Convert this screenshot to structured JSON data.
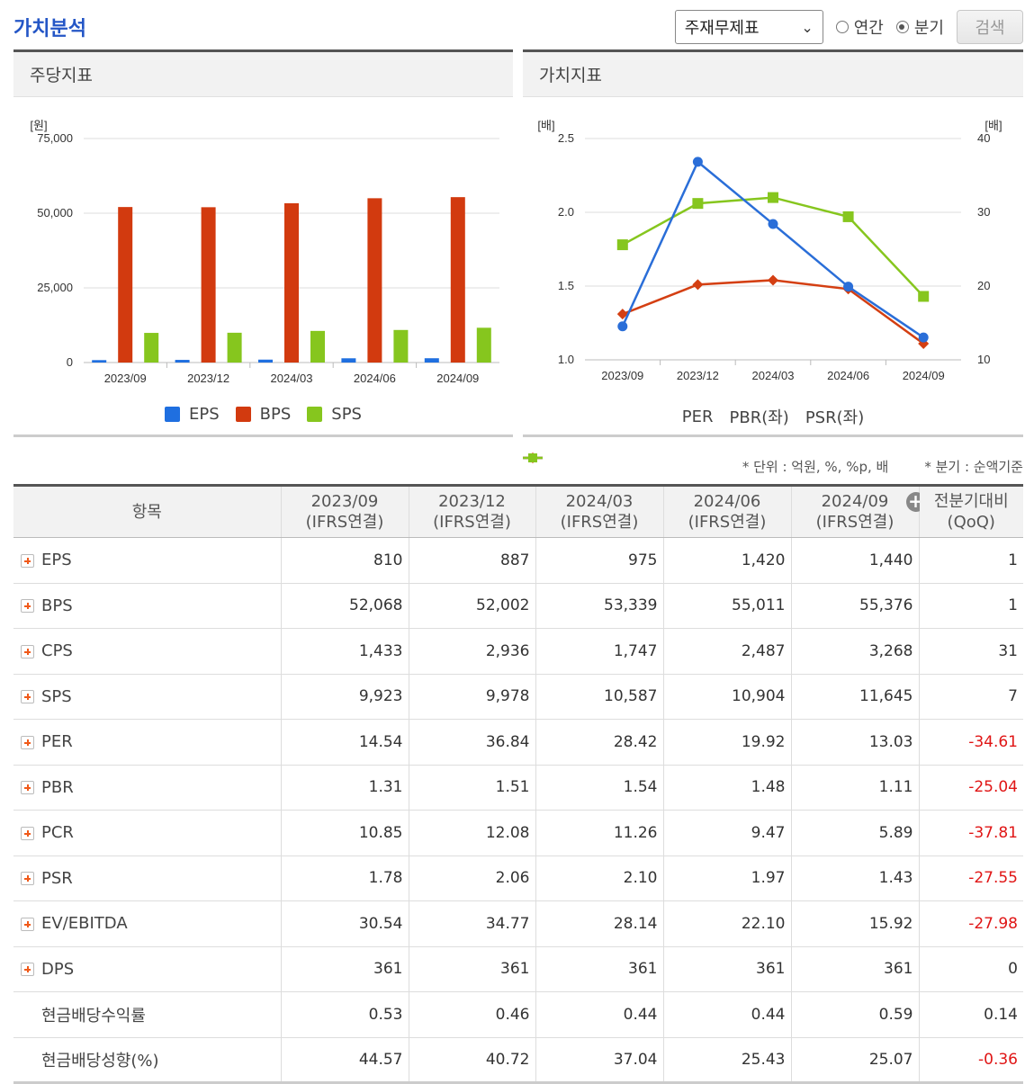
{
  "title": "가치분석",
  "controls": {
    "select_value": "주재무제표",
    "radio_annual": "연간",
    "radio_quarter": "분기",
    "search_label": "검색"
  },
  "panels": {
    "left_title": "주당지표",
    "right_title": "가치지표"
  },
  "chart_data": [
    {
      "type": "bar",
      "ylabel": "[원]",
      "ylim": [
        0,
        75000
      ],
      "yticks": [
        "0",
        "25,000",
        "50,000",
        "75,000"
      ],
      "categories": [
        "2023/09",
        "2023/12",
        "2024/03",
        "2024/06",
        "2024/09"
      ],
      "series": [
        {
          "name": "EPS",
          "color": "#1f6fe0",
          "values": [
            810,
            887,
            975,
            1420,
            1440
          ]
        },
        {
          "name": "BPS",
          "color": "#d23a0f",
          "values": [
            52068,
            52002,
            53339,
            55011,
            55376
          ]
        },
        {
          "name": "SPS",
          "color": "#86c61e",
          "values": [
            9923,
            9978,
            10587,
            10904,
            11645
          ]
        }
      ],
      "grid": true,
      "legend": "bottom"
    },
    {
      "type": "line",
      "ylabel_left": "[배]",
      "ylabel_right": "[배]",
      "ylim_left": [
        1.0,
        2.5
      ],
      "ylim_right": [
        10,
        40
      ],
      "yticks_left": [
        "1.0",
        "1.5",
        "2.0",
        "2.5"
      ],
      "yticks_right": [
        "10",
        "20",
        "30",
        "40"
      ],
      "categories": [
        "2023/09",
        "2023/12",
        "2024/03",
        "2024/06",
        "2024/09"
      ],
      "series": [
        {
          "name": "PER",
          "axis": "right",
          "color": "#2a6ed8",
          "marker": "circle",
          "values": [
            14.54,
            36.84,
            28.42,
            19.92,
            13.03
          ]
        },
        {
          "name": "PBR(좌)",
          "axis": "left",
          "color": "#d43f12",
          "marker": "diamond",
          "values": [
            1.31,
            1.51,
            1.54,
            1.48,
            1.11
          ]
        },
        {
          "name": "PSR(좌)",
          "axis": "left",
          "color": "#86c61e",
          "marker": "square",
          "values": [
            1.78,
            2.06,
            2.1,
            1.97,
            1.43
          ]
        }
      ],
      "grid": true,
      "legend": "bottom"
    }
  ],
  "notes": {
    "unit": "* 단위 : 억원, %, %p, 배",
    "quarter": "* 분기 : 순액기준"
  },
  "table": {
    "headers": [
      {
        "line1": "항목",
        "line2": ""
      },
      {
        "line1": "2023/09",
        "line2": "(IFRS연결)"
      },
      {
        "line1": "2023/12",
        "line2": "(IFRS연결)"
      },
      {
        "line1": "2024/03",
        "line2": "(IFRS연결)"
      },
      {
        "line1": "2024/06",
        "line2": "(IFRS연결)"
      },
      {
        "line1": "2024/09",
        "line2": "(IFRS연결)"
      },
      {
        "line1": "전분기대비",
        "line2": "(QoQ)"
      }
    ],
    "rows": [
      {
        "label": "EPS",
        "expand": true,
        "values": [
          "810",
          "887",
          "975",
          "1,420",
          "1,440",
          "1"
        ],
        "neg": false
      },
      {
        "label": "BPS",
        "expand": true,
        "values": [
          "52,068",
          "52,002",
          "53,339",
          "55,011",
          "55,376",
          "1"
        ],
        "neg": false
      },
      {
        "label": "CPS",
        "expand": true,
        "values": [
          "1,433",
          "2,936",
          "1,747",
          "2,487",
          "3,268",
          "31"
        ],
        "neg": false
      },
      {
        "label": "SPS",
        "expand": true,
        "values": [
          "9,923",
          "9,978",
          "10,587",
          "10,904",
          "11,645",
          "7"
        ],
        "neg": false
      },
      {
        "label": "PER",
        "expand": true,
        "values": [
          "14.54",
          "36.84",
          "28.42",
          "19.92",
          "13.03",
          "-34.61"
        ],
        "neg": true
      },
      {
        "label": "PBR",
        "expand": true,
        "values": [
          "1.31",
          "1.51",
          "1.54",
          "1.48",
          "1.11",
          "-25.04"
        ],
        "neg": true
      },
      {
        "label": "PCR",
        "expand": true,
        "values": [
          "10.85",
          "12.08",
          "11.26",
          "9.47",
          "5.89",
          "-37.81"
        ],
        "neg": true
      },
      {
        "label": "PSR",
        "expand": true,
        "values": [
          "1.78",
          "2.06",
          "2.10",
          "1.97",
          "1.43",
          "-27.55"
        ],
        "neg": true
      },
      {
        "label": "EV/EBITDA",
        "expand": true,
        "values": [
          "30.54",
          "34.77",
          "28.14",
          "22.10",
          "15.92",
          "-27.98"
        ],
        "neg": true
      },
      {
        "label": "DPS",
        "expand": true,
        "values": [
          "361",
          "361",
          "361",
          "361",
          "361",
          "0"
        ],
        "neg": false
      },
      {
        "label": "현금배당수익률",
        "expand": false,
        "values": [
          "0.53",
          "0.46",
          "0.44",
          "0.44",
          "0.59",
          "0.14"
        ],
        "neg": false
      },
      {
        "label": "현금배당성향(%)",
        "expand": false,
        "values": [
          "44.57",
          "40.72",
          "37.04",
          "25.43",
          "25.07",
          "-0.36"
        ],
        "neg": true
      }
    ]
  }
}
